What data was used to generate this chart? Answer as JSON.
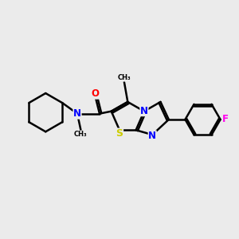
{
  "background_color": "#ebebeb",
  "bond_color": "#000000",
  "atom_colors": {
    "N": "#0000ff",
    "O": "#ff0000",
    "S": "#cccc00",
    "F": "#ff00ee",
    "C": "#000000"
  },
  "figsize": [
    3.0,
    3.0
  ],
  "dpi": 100
}
